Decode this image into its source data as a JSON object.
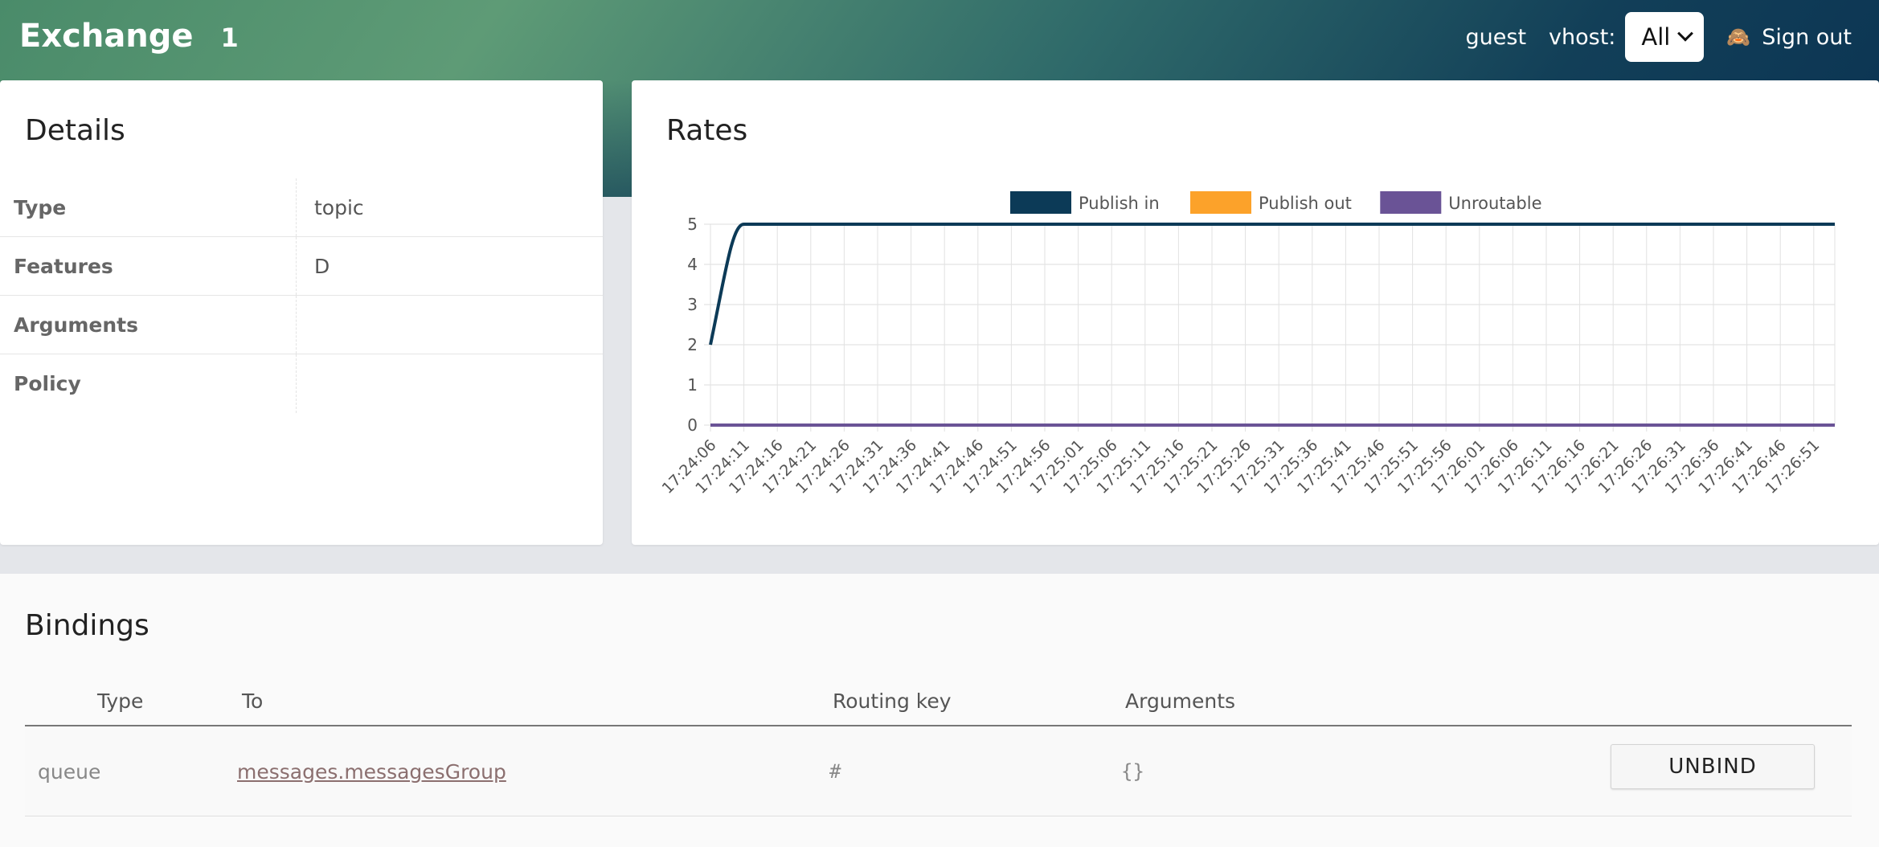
{
  "header": {
    "title": "Exchange",
    "count": "1",
    "user": "guest",
    "vhost_label": "vhost:",
    "vhost_value": "All",
    "sign_out": "Sign out"
  },
  "details": {
    "title": "Details",
    "rows": [
      {
        "key": "Type",
        "value": "topic"
      },
      {
        "key": "Features",
        "value": "D"
      },
      {
        "key": "Arguments",
        "value": ""
      },
      {
        "key": "Policy",
        "value": ""
      }
    ]
  },
  "rates": {
    "title": "Rates"
  },
  "chart_data": {
    "type": "line",
    "title": "",
    "xlabel": "",
    "ylabel": "",
    "ylim": [
      0,
      5
    ],
    "yticks": [
      "0",
      "1",
      "2",
      "3",
      "4",
      "5"
    ],
    "legend_position": "top",
    "categories": [
      "17:24:06",
      "17:24:11",
      "17:24:16",
      "17:24:21",
      "17:24:26",
      "17:24:31",
      "17:24:36",
      "17:24:41",
      "17:24:46",
      "17:24:51",
      "17:24:56",
      "17:25:01",
      "17:25:06",
      "17:25:11",
      "17:25:16",
      "17:25:21",
      "17:25:26",
      "17:25:31",
      "17:25:36",
      "17:25:41",
      "17:25:46",
      "17:25:51",
      "17:25:56",
      "17:26:01",
      "17:26:06",
      "17:26:11",
      "17:26:16",
      "17:26:21",
      "17:26:26",
      "17:26:31",
      "17:26:36",
      "17:26:41",
      "17:26:46",
      "17:26:51"
    ],
    "series": [
      {
        "name": "Publish in",
        "color": "#0c3a57",
        "values": [
          2,
          5,
          5,
          5,
          5,
          5,
          5,
          5,
          5,
          5,
          5,
          5,
          5,
          5,
          5,
          5,
          5,
          5,
          5,
          5,
          5,
          5,
          5,
          5,
          5,
          5,
          5,
          5,
          5,
          5,
          5,
          5,
          5,
          5
        ]
      },
      {
        "name": "Publish out",
        "color": "#fca22a",
        "values": [
          0,
          0,
          0,
          0,
          0,
          0,
          0,
          0,
          0,
          0,
          0,
          0,
          0,
          0,
          0,
          0,
          0,
          0,
          0,
          0,
          0,
          0,
          0,
          0,
          0,
          0,
          0,
          0,
          0,
          0,
          0,
          0,
          0,
          0
        ]
      },
      {
        "name": "Unroutable",
        "color": "#6a5396",
        "values": [
          0,
          0,
          0,
          0,
          0,
          0,
          0,
          0,
          0,
          0,
          0,
          0,
          0,
          0,
          0,
          0,
          0,
          0,
          0,
          0,
          0,
          0,
          0,
          0,
          0,
          0,
          0,
          0,
          0,
          0,
          0,
          0,
          0,
          0
        ]
      }
    ],
    "grid": true
  },
  "bindings": {
    "title": "Bindings",
    "columns": {
      "type": "Type",
      "to": "To",
      "routing_key": "Routing key",
      "arguments": "Arguments"
    },
    "rows": [
      {
        "type": "queue",
        "to": "messages.messagesGroup",
        "routing_key": "#",
        "arguments": "{}",
        "action": "UNBIND"
      }
    ]
  }
}
